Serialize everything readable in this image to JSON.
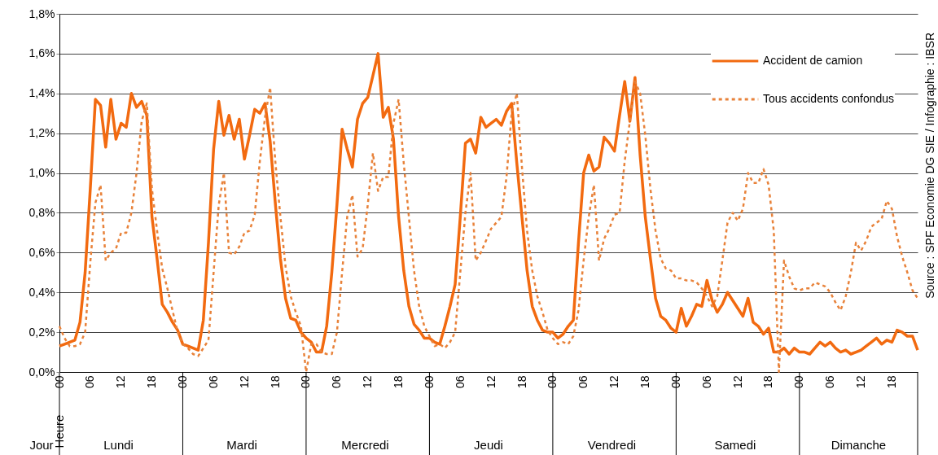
{
  "chart_data": {
    "type": "line",
    "legend": "top right",
    "grid": "y",
    "x": [
      0,
      1,
      2,
      3,
      4,
      5,
      6,
      7,
      8,
      9,
      10,
      11,
      12,
      13,
      14,
      15,
      16,
      17,
      18,
      19,
      20,
      21,
      22,
      23,
      24,
      25,
      26,
      27,
      28,
      29,
      30,
      31,
      32,
      33,
      34,
      35,
      36,
      37,
      38,
      39,
      40,
      41,
      42,
      43,
      44,
      45,
      46,
      47,
      48,
      49,
      50,
      51,
      52,
      53,
      54,
      55,
      56,
      57,
      58,
      59,
      60,
      61,
      62,
      63,
      64,
      65,
      66,
      67,
      68,
      69,
      70,
      71,
      72,
      73,
      74,
      75,
      76,
      77,
      78,
      79,
      80,
      81,
      82,
      83,
      84,
      85,
      86,
      87,
      88,
      89,
      90,
      91,
      92,
      93,
      94,
      95,
      96,
      97,
      98,
      99,
      100,
      101,
      102,
      103,
      104,
      105,
      106,
      107,
      108,
      109,
      110,
      111,
      112,
      113,
      114,
      115,
      116,
      117,
      118,
      119,
      120,
      121,
      122,
      123,
      124,
      125,
      126,
      127,
      128,
      129,
      130,
      131,
      132,
      133,
      134,
      135,
      136,
      137,
      138,
      139,
      140,
      141,
      142,
      143,
      144,
      145,
      146,
      147,
      148,
      149,
      150,
      151,
      152,
      153,
      154,
      155,
      156,
      157,
      158,
      159,
      160,
      161,
      162,
      163,
      164,
      165,
      166,
      167
    ],
    "xlim": [
      0,
      167
    ],
    "xticks": [
      {
        "value": 0,
        "label": "00"
      },
      {
        "value": 6,
        "label": "06"
      },
      {
        "value": 12,
        "label": "12"
      },
      {
        "value": 18,
        "label": "18"
      },
      {
        "value": 24,
        "label": "00"
      },
      {
        "value": 30,
        "label": "06"
      },
      {
        "value": 36,
        "label": "12"
      },
      {
        "value": 42,
        "label": "18"
      },
      {
        "value": 48,
        "label": "00"
      },
      {
        "value": 54,
        "label": "06"
      },
      {
        "value": 60,
        "label": "12"
      },
      {
        "value": 66,
        "label": "18"
      },
      {
        "value": 72,
        "label": "00"
      },
      {
        "value": 78,
        "label": "06"
      },
      {
        "value": 84,
        "label": "12"
      },
      {
        "value": 90,
        "label": "18"
      },
      {
        "value": 96,
        "label": "00"
      },
      {
        "value": 102,
        "label": "06"
      },
      {
        "value": 108,
        "label": "12"
      },
      {
        "value": 114,
        "label": "18"
      },
      {
        "value": 120,
        "label": "00"
      },
      {
        "value": 126,
        "label": "06"
      },
      {
        "value": 132,
        "label": "12"
      },
      {
        "value": 138,
        "label": "18"
      },
      {
        "value": 144,
        "label": "00"
      },
      {
        "value": 150,
        "label": "06"
      },
      {
        "value": 156,
        "label": "12"
      },
      {
        "value": 162,
        "label": "18"
      }
    ],
    "ylim": [
      0,
      1.8
    ],
    "yticks": [
      {
        "value": 0,
        "label": "0,0%"
      },
      {
        "value": 0.2,
        "label": "0,2%"
      },
      {
        "value": 0.4,
        "label": "0,4%"
      },
      {
        "value": 0.6,
        "label": "0,6%"
      },
      {
        "value": 0.8,
        "label": "0,8%"
      },
      {
        "value": 1.0,
        "label": "1,0%"
      },
      {
        "value": 1.2,
        "label": "1,2%"
      },
      {
        "value": 1.4,
        "label": "1,4%"
      },
      {
        "value": 1.6,
        "label": "1,6%"
      },
      {
        "value": 1.8,
        "label": "1,8%"
      }
    ],
    "series": [
      {
        "name": "Accident de camion",
        "color": "#f26a10",
        "line_style": "solid",
        "values": [
          0.13,
          0.14,
          0.15,
          0.16,
          0.25,
          0.5,
          0.92,
          1.37,
          1.34,
          1.13,
          1.37,
          1.17,
          1.25,
          1.23,
          1.4,
          1.33,
          1.36,
          1.29,
          0.78,
          0.57,
          0.34,
          0.3,
          0.25,
          0.21,
          0.14,
          0.13,
          0.12,
          0.11,
          0.26,
          0.65,
          1.12,
          1.36,
          1.19,
          1.29,
          1.17,
          1.27,
          1.07,
          1.19,
          1.32,
          1.3,
          1.35,
          1.16,
          0.85,
          0.57,
          0.37,
          0.27,
          0.26,
          0.2,
          0.17,
          0.15,
          0.1,
          0.1,
          0.23,
          0.5,
          0.84,
          1.22,
          1.12,
          1.03,
          1.27,
          1.35,
          1.38,
          1.49,
          1.6,
          1.28,
          1.33,
          1.17,
          0.78,
          0.51,
          0.33,
          0.24,
          0.21,
          0.17,
          0.17,
          0.15,
          0.14,
          0.23,
          0.33,
          0.44,
          0.78,
          1.15,
          1.17,
          1.1,
          1.28,
          1.23,
          1.25,
          1.27,
          1.24,
          1.31,
          1.35,
          1.05,
          0.78,
          0.51,
          0.33,
          0.26,
          0.21,
          0.2,
          0.2,
          0.17,
          0.19,
          0.23,
          0.26,
          0.65,
          1.0,
          1.09,
          1.01,
          1.03,
          1.18,
          1.15,
          1.11,
          1.29,
          1.46,
          1.26,
          1.48,
          1.09,
          0.78,
          0.57,
          0.37,
          0.28,
          0.26,
          0.22,
          0.2,
          0.32,
          0.23,
          0.28,
          0.34,
          0.33,
          0.46,
          0.36,
          0.3,
          0.34,
          0.4,
          0.36,
          0.32,
          0.28,
          0.37,
          0.25,
          0.23,
          0.19,
          0.22,
          0.1,
          0.1,
          0.12,
          0.09,
          0.12,
          0.1,
          0.1,
          0.09,
          0.12,
          0.15,
          0.13,
          0.15,
          0.12,
          0.1,
          0.11,
          0.09,
          0.1,
          0.11,
          0.13,
          0.15,
          0.17,
          0.14,
          0.16,
          0.15,
          0.21,
          0.2,
          0.18,
          0.18,
          0.11
        ]
      },
      {
        "name": "Tous accidents confondus",
        "color": "#e8823a",
        "line_style": "dotted",
        "values": [
          0.23,
          0.17,
          0.13,
          0.13,
          0.14,
          0.2,
          0.55,
          0.85,
          0.94,
          0.56,
          0.6,
          0.62,
          0.7,
          0.7,
          0.8,
          1.0,
          1.26,
          1.35,
          0.92,
          0.71,
          0.52,
          0.42,
          0.31,
          0.2,
          0.14,
          0.12,
          0.09,
          0.08,
          0.12,
          0.16,
          0.5,
          0.84,
          1.0,
          0.6,
          0.59,
          0.63,
          0.7,
          0.71,
          0.79,
          1.06,
          1.28,
          1.43,
          1.06,
          0.78,
          0.53,
          0.38,
          0.3,
          0.23,
          0.0,
          0.14,
          0.14,
          0.1,
          0.09,
          0.09,
          0.2,
          0.5,
          0.78,
          0.89,
          0.58,
          0.62,
          0.84,
          1.1,
          0.91,
          0.98,
          0.98,
          1.25,
          1.37,
          1.05,
          0.78,
          0.51,
          0.33,
          0.23,
          0.18,
          0.13,
          0.14,
          0.12,
          0.15,
          0.2,
          0.5,
          0.8,
          1.0,
          0.56,
          0.6,
          0.66,
          0.72,
          0.75,
          0.78,
          0.98,
          1.3,
          1.4,
          1.03,
          0.71,
          0.51,
          0.38,
          0.3,
          0.21,
          0.17,
          0.14,
          0.15,
          0.14,
          0.18,
          0.31,
          0.56,
          0.78,
          0.94,
          0.56,
          0.67,
          0.72,
          0.79,
          0.8,
          1.06,
          1.26,
          1.46,
          1.4,
          1.19,
          0.92,
          0.71,
          0.57,
          0.52,
          0.51,
          0.47,
          0.47,
          0.46,
          0.46,
          0.45,
          0.42,
          0.38,
          0.33,
          0.38,
          0.56,
          0.75,
          0.8,
          0.76,
          0.82,
          1.0,
          0.95,
          0.95,
          1.02,
          0.94,
          0.71,
          0.0,
          0.56,
          0.48,
          0.42,
          0.41,
          0.42,
          0.42,
          0.45,
          0.44,
          0.43,
          0.4,
          0.35,
          0.31,
          0.38,
          0.5,
          0.65,
          0.61,
          0.66,
          0.73,
          0.75,
          0.77,
          0.86,
          0.82,
          0.68,
          0.58,
          0.5,
          0.41,
          0.37
        ]
      }
    ],
    "annotations": [
      "Heure",
      "Jour",
      "Lundi",
      "Mardi",
      "Mercredi",
      "Jeudi",
      "Vendredi",
      "Samedi",
      "Dimanche",
      "Source : SPF Economie DG SIE / Infographie : IBSR"
    ]
  }
}
